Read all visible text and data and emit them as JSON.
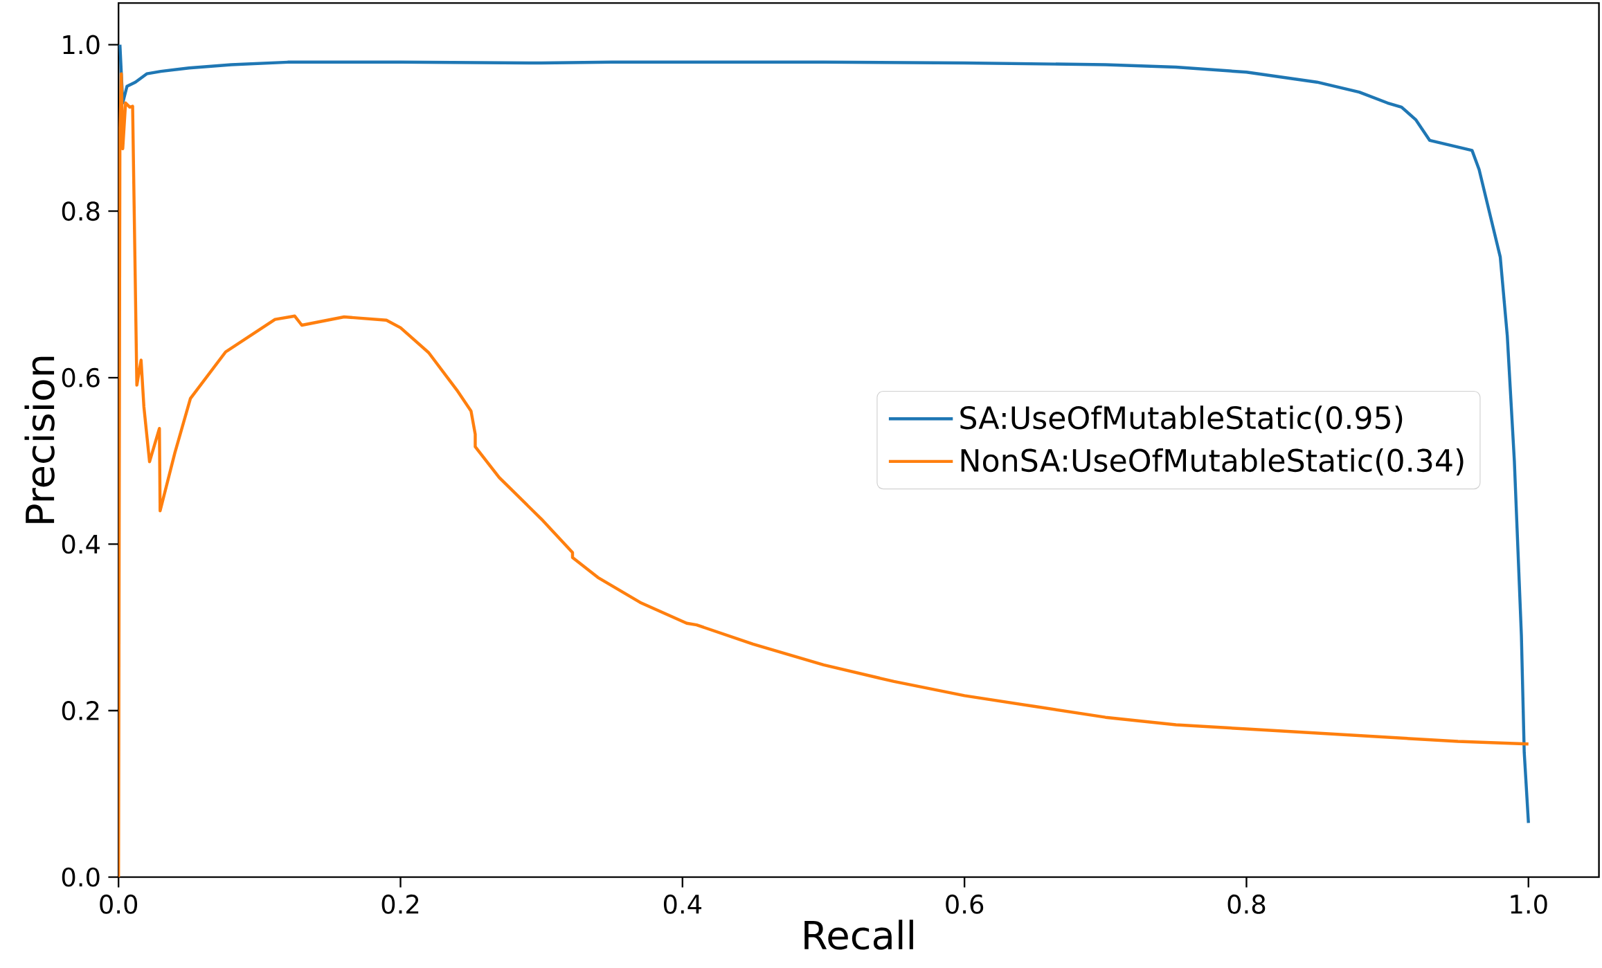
{
  "chart_data": {
    "type": "line",
    "xlabel": "Recall",
    "ylabel": "Precision",
    "xlim": [
      0,
      1.05
    ],
    "ylim": [
      0,
      1.05
    ],
    "xticks": [
      {
        "value": 0,
        "label": "0.0"
      },
      0.2,
      0.4,
      0.6,
      0.8,
      {
        "value": 1,
        "label": "1.0"
      }
    ],
    "yticks": [
      {
        "value": 0,
        "label": "0.0"
      },
      0.2,
      0.4,
      0.6,
      0.8,
      {
        "value": 1,
        "label": "1.0"
      }
    ],
    "grid": false,
    "legend": "center right",
    "marker": "none",
    "line_style": "solid",
    "series": [
      {
        "name": "SA:UseOfMutableStatic(0.95)",
        "color": "#1f77b4",
        "x": [
          0.001,
          0.003,
          0.006,
          0.012,
          0.02,
          0.03,
          0.05,
          0.08,
          0.12,
          0.2,
          0.3,
          0.35,
          0.5,
          0.6,
          0.7,
          0.75,
          0.8,
          0.85,
          0.88,
          0.9,
          0.91,
          0.92,
          0.93,
          0.96,
          0.965,
          0.975,
          0.98,
          0.985,
          0.988,
          0.99,
          0.995,
          0.997,
          1.0
        ],
        "values": [
          1.0,
          0.93,
          0.95,
          0.955,
          0.965,
          0.968,
          0.972,
          0.976,
          0.979,
          0.979,
          0.978,
          0.979,
          0.979,
          0.978,
          0.976,
          0.973,
          0.967,
          0.955,
          0.943,
          0.93,
          0.925,
          0.91,
          0.885,
          0.873,
          0.85,
          0.78,
          0.745,
          0.65,
          0.56,
          0.5,
          0.29,
          0.15,
          0.065
        ]
      },
      {
        "name": "NonSA:UseOfMutableStatic(0.34)",
        "color": "#ff7f0e",
        "x": [
          0,
          0.001,
          0.002,
          0.003,
          0.005,
          0.008,
          0.01,
          0.013,
          0.016,
          0.018,
          0.022,
          0.029,
          0.0295,
          0.04,
          0.051,
          0.076,
          0.111,
          0.125,
          0.13,
          0.16,
          0.19,
          0.2,
          0.22,
          0.24,
          0.25,
          0.253,
          0.253,
          0.27,
          0.3,
          0.322,
          0.322,
          0.34,
          0.37,
          0.403,
          0.41,
          0.45,
          0.5,
          0.55,
          0.6,
          0.65,
          0.7,
          0.75,
          0.8,
          0.85,
          0.9,
          0.95,
          1.0
        ],
        "values": [
          0,
          0.9,
          0.965,
          0.875,
          0.93,
          0.925,
          0.926,
          0.591,
          0.621,
          0.565,
          0.499,
          0.539,
          0.44,
          0.51,
          0.575,
          0.631,
          0.67,
          0.674,
          0.663,
          0.673,
          0.669,
          0.66,
          0.63,
          0.585,
          0.56,
          0.532,
          0.517,
          0.48,
          0.43,
          0.39,
          0.384,
          0.36,
          0.33,
          0.305,
          0.303,
          0.28,
          0.255,
          0.235,
          0.218,
          0.205,
          0.192,
          0.183,
          0.178,
          0.173,
          0.168,
          0.163,
          0.16
        ]
      }
    ]
  }
}
